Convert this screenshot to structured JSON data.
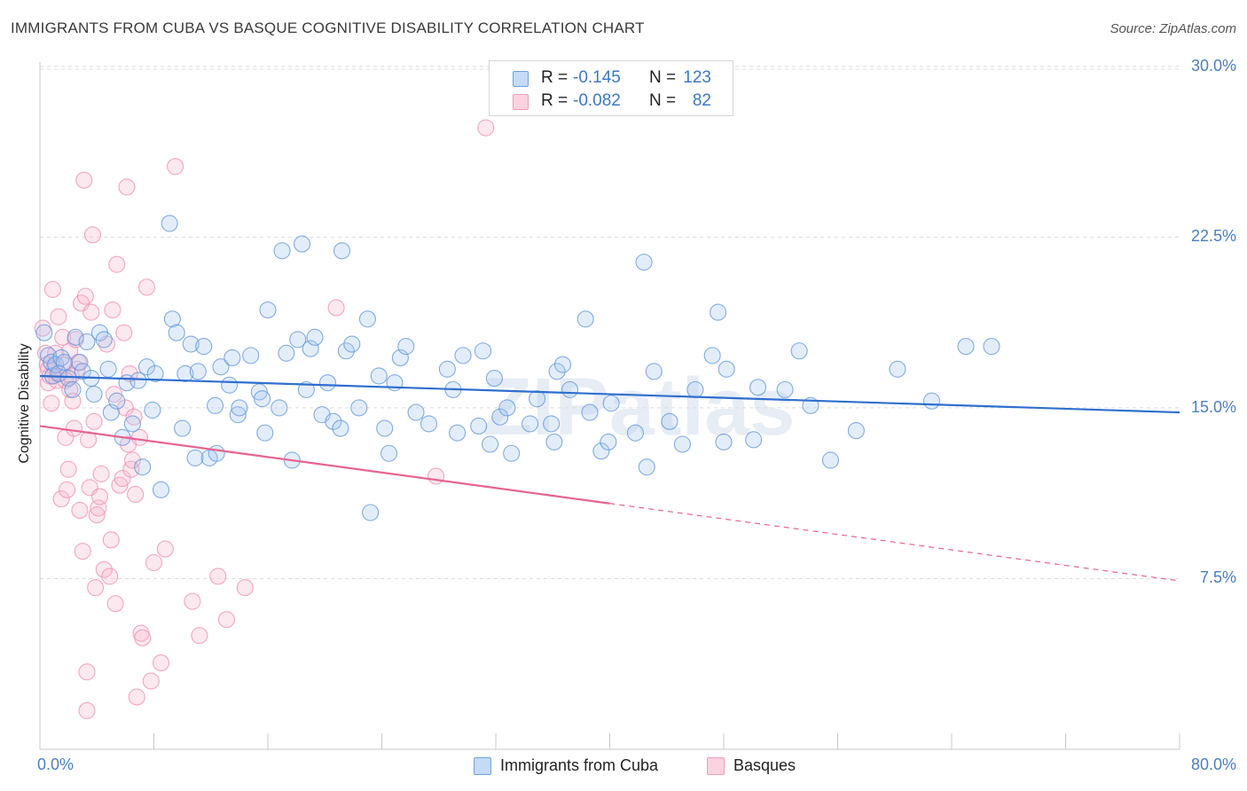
{
  "header": {
    "title": "IMMIGRANTS FROM CUBA VS BASQUE COGNITIVE DISABILITY CORRELATION CHART",
    "source": "Source: ZipAtlas.com"
  },
  "watermark": "ZIPatlas",
  "legend": {
    "rows": [
      {
        "r_label": "R =",
        "r_value": "-0.145",
        "n_label": "N =",
        "n_value": "123",
        "color": "#6fa3e0"
      },
      {
        "r_label": "R =",
        "r_value": "-0.082",
        "n_label": "N =",
        "n_value": "82",
        "color": "#f29ab7"
      }
    ]
  },
  "bottom_legend": {
    "items": [
      {
        "label": "Immigrants from Cuba",
        "color": "#6fa3e0"
      },
      {
        "label": "Basques",
        "color": "#f29ab7"
      }
    ]
  },
  "chart_data": {
    "type": "scatter",
    "title": "IMMIGRANTS FROM CUBA VS BASQUE COGNITIVE DISABILITY CORRELATION CHART",
    "xlabel": "",
    "ylabel": "Cognitive Disability",
    "xlim": [
      0,
      80
    ],
    "ylim": [
      0,
      30.5
    ],
    "x_tick_labels": [
      "0.0%",
      "80.0%"
    ],
    "y_ticks": [
      7.5,
      15.0,
      22.5,
      30.0
    ],
    "y_tick_labels": [
      "7.5%",
      "15.0%",
      "22.5%",
      "30.0%"
    ],
    "grid": "horizontal dashed",
    "legend_position": "top-center",
    "colors": {
      "cuba": "#5b93dc",
      "basques": "#f08cae",
      "cuba_line": "#2f6fcf",
      "basques_line": "#e8648e"
    },
    "series": [
      {
        "name": "Immigrants from Cuba",
        "trend": {
          "x": [
            0,
            80
          ],
          "y": [
            16.4,
            14.8
          ]
        },
        "points": [
          [
            0.3,
            18.3
          ],
          [
            0.6,
            17.3
          ],
          [
            0.8,
            17.0
          ],
          [
            0.9,
            16.4
          ],
          [
            1.1,
            16.9
          ],
          [
            1.3,
            16.5
          ],
          [
            1.5,
            17.2
          ],
          [
            1.7,
            17.0
          ],
          [
            2.0,
            16.3
          ],
          [
            2.3,
            15.8
          ],
          [
            2.5,
            18.1
          ],
          [
            2.8,
            17.0
          ],
          [
            3.0,
            16.6
          ],
          [
            3.3,
            17.9
          ],
          [
            3.6,
            16.3
          ],
          [
            3.8,
            15.6
          ],
          [
            4.2,
            18.3
          ],
          [
            4.5,
            18.0
          ],
          [
            4.8,
            16.7
          ],
          [
            5.0,
            14.8
          ],
          [
            5.4,
            15.3
          ],
          [
            5.8,
            13.7
          ],
          [
            6.1,
            16.1
          ],
          [
            6.5,
            14.3
          ],
          [
            6.9,
            16.2
          ],
          [
            7.2,
            12.4
          ],
          [
            7.5,
            16.8
          ],
          [
            7.9,
            14.9
          ],
          [
            8.1,
            16.5
          ],
          [
            8.5,
            11.4
          ],
          [
            9.1,
            23.1
          ],
          [
            9.3,
            18.9
          ],
          [
            9.6,
            18.3
          ],
          [
            10.0,
            14.1
          ],
          [
            10.2,
            16.5
          ],
          [
            10.6,
            17.8
          ],
          [
            10.9,
            12.8
          ],
          [
            11.1,
            16.6
          ],
          [
            11.5,
            17.7
          ],
          [
            11.9,
            12.8
          ],
          [
            12.3,
            15.1
          ],
          [
            12.4,
            13.0
          ],
          [
            12.7,
            16.8
          ],
          [
            13.3,
            16.0
          ],
          [
            13.5,
            17.2
          ],
          [
            13.9,
            14.7
          ],
          [
            14.0,
            15.0
          ],
          [
            14.8,
            17.3
          ],
          [
            15.4,
            15.7
          ],
          [
            15.6,
            15.4
          ],
          [
            15.8,
            13.9
          ],
          [
            16.0,
            19.3
          ],
          [
            16.8,
            15.0
          ],
          [
            17.0,
            21.9
          ],
          [
            17.3,
            17.4
          ],
          [
            17.7,
            12.7
          ],
          [
            18.1,
            18.0
          ],
          [
            18.4,
            22.2
          ],
          [
            18.7,
            15.8
          ],
          [
            19.0,
            17.6
          ],
          [
            19.3,
            18.1
          ],
          [
            19.8,
            14.7
          ],
          [
            20.2,
            16.1
          ],
          [
            20.6,
            14.4
          ],
          [
            21.1,
            14.1
          ],
          [
            21.2,
            21.9
          ],
          [
            21.5,
            17.5
          ],
          [
            21.9,
            17.8
          ],
          [
            22.4,
            15.0
          ],
          [
            23.0,
            18.9
          ],
          [
            23.2,
            10.4
          ],
          [
            23.8,
            16.4
          ],
          [
            24.2,
            14.1
          ],
          [
            24.5,
            13.0
          ],
          [
            24.9,
            16.1
          ],
          [
            25.3,
            17.2
          ],
          [
            25.7,
            17.7
          ],
          [
            26.4,
            14.8
          ],
          [
            27.3,
            14.3
          ],
          [
            28.6,
            16.7
          ],
          [
            29.0,
            15.8
          ],
          [
            29.3,
            13.9
          ],
          [
            29.7,
            17.3
          ],
          [
            30.8,
            14.2
          ],
          [
            31.1,
            17.5
          ],
          [
            31.6,
            13.4
          ],
          [
            31.9,
            16.3
          ],
          [
            32.3,
            14.6
          ],
          [
            32.8,
            15.0
          ],
          [
            33.1,
            13.0
          ],
          [
            34.4,
            14.3
          ],
          [
            34.9,
            15.4
          ],
          [
            35.9,
            14.3
          ],
          [
            36.1,
            13.5
          ],
          [
            36.3,
            16.6
          ],
          [
            36.7,
            16.9
          ],
          [
            37.2,
            15.8
          ],
          [
            38.3,
            18.9
          ],
          [
            38.6,
            14.8
          ],
          [
            39.4,
            13.1
          ],
          [
            39.9,
            13.5
          ],
          [
            40.1,
            15.2
          ],
          [
            41.8,
            13.9
          ],
          [
            42.4,
            21.4
          ],
          [
            42.6,
            12.4
          ],
          [
            43.1,
            16.6
          ],
          [
            44.2,
            14.4
          ],
          [
            45.1,
            13.4
          ],
          [
            46.0,
            15.8
          ],
          [
            47.2,
            17.3
          ],
          [
            47.6,
            19.2
          ],
          [
            48.0,
            13.5
          ],
          [
            48.2,
            16.7
          ],
          [
            50.1,
            13.6
          ],
          [
            50.4,
            15.9
          ],
          [
            52.3,
            15.8
          ],
          [
            53.3,
            17.5
          ],
          [
            54.1,
            15.1
          ],
          [
            55.5,
            12.7
          ],
          [
            57.3,
            14.0
          ],
          [
            60.2,
            16.7
          ],
          [
            62.6,
            15.3
          ],
          [
            65.0,
            17.7
          ],
          [
            66.8,
            17.7
          ]
        ]
      },
      {
        "name": "Basques",
        "trend": {
          "x": [
            0,
            40
          ],
          "y": [
            14.2,
            10.8
          ]
        },
        "trend_extension": {
          "x": [
            40,
            80
          ],
          "y": [
            10.8,
            7.4
          ]
        },
        "points": [
          [
            0.2,
            18.5
          ],
          [
            0.4,
            17.4
          ],
          [
            0.5,
            16.9
          ],
          [
            0.6,
            16.1
          ],
          [
            0.7,
            16.4
          ],
          [
            0.8,
            15.2
          ],
          [
            0.9,
            20.2
          ],
          [
            1.0,
            16.8
          ],
          [
            1.1,
            17.4
          ],
          [
            1.2,
            16.2
          ],
          [
            1.3,
            19.0
          ],
          [
            1.4,
            16.5
          ],
          [
            1.5,
            11.0
          ],
          [
            1.6,
            18.1
          ],
          [
            1.7,
            16.9
          ],
          [
            1.8,
            13.7
          ],
          [
            1.9,
            11.4
          ],
          [
            2.0,
            12.3
          ],
          [
            2.1,
            17.5
          ],
          [
            2.2,
            16.4
          ],
          [
            2.3,
            15.3
          ],
          [
            2.4,
            14.1
          ],
          [
            2.5,
            18.0
          ],
          [
            2.6,
            16.7
          ],
          [
            2.7,
            17.0
          ],
          [
            2.8,
            10.5
          ],
          [
            2.9,
            19.6
          ],
          [
            3.0,
            8.7
          ],
          [
            3.1,
            25.0
          ],
          [
            3.2,
            19.9
          ],
          [
            3.3,
            3.4
          ],
          [
            3.4,
            13.6
          ],
          [
            3.5,
            11.5
          ],
          [
            3.6,
            19.2
          ],
          [
            3.7,
            22.6
          ],
          [
            3.8,
            14.4
          ],
          [
            3.9,
            7.1
          ],
          [
            4.0,
            10.3
          ],
          [
            4.1,
            10.6
          ],
          [
            4.2,
            11.1
          ],
          [
            4.3,
            12.1
          ],
          [
            4.5,
            7.9
          ],
          [
            4.7,
            17.8
          ],
          [
            4.9,
            7.6
          ],
          [
            5.0,
            9.2
          ],
          [
            5.1,
            19.3
          ],
          [
            5.2,
            15.6
          ],
          [
            5.4,
            21.3
          ],
          [
            5.6,
            11.6
          ],
          [
            5.8,
            11.9
          ],
          [
            5.9,
            18.3
          ],
          [
            6.0,
            15.0
          ],
          [
            6.1,
            24.7
          ],
          [
            6.2,
            13.4
          ],
          [
            6.3,
            16.5
          ],
          [
            6.4,
            12.3
          ],
          [
            6.5,
            12.7
          ],
          [
            6.6,
            14.6
          ],
          [
            6.7,
            11.2
          ],
          [
            6.8,
            2.3
          ],
          [
            7.0,
            13.7
          ],
          [
            7.1,
            5.1
          ],
          [
            7.2,
            4.9
          ],
          [
            7.5,
            20.3
          ],
          [
            7.8,
            3.0
          ],
          [
            8.0,
            8.2
          ],
          [
            8.5,
            3.8
          ],
          [
            8.8,
            8.8
          ],
          [
            9.5,
            25.6
          ],
          [
            10.7,
            6.5
          ],
          [
            11.2,
            5.0
          ],
          [
            12.5,
            7.6
          ],
          [
            13.1,
            5.7
          ],
          [
            14.4,
            7.1
          ],
          [
            20.8,
            19.4
          ],
          [
            27.8,
            12.0
          ],
          [
            31.3,
            27.3
          ],
          [
            3.3,
            1.7
          ],
          [
            5.3,
            6.4
          ],
          [
            1.8,
            16.2
          ],
          [
            2.1,
            15.8
          ],
          [
            0.6,
            16.7
          ]
        ]
      }
    ]
  }
}
